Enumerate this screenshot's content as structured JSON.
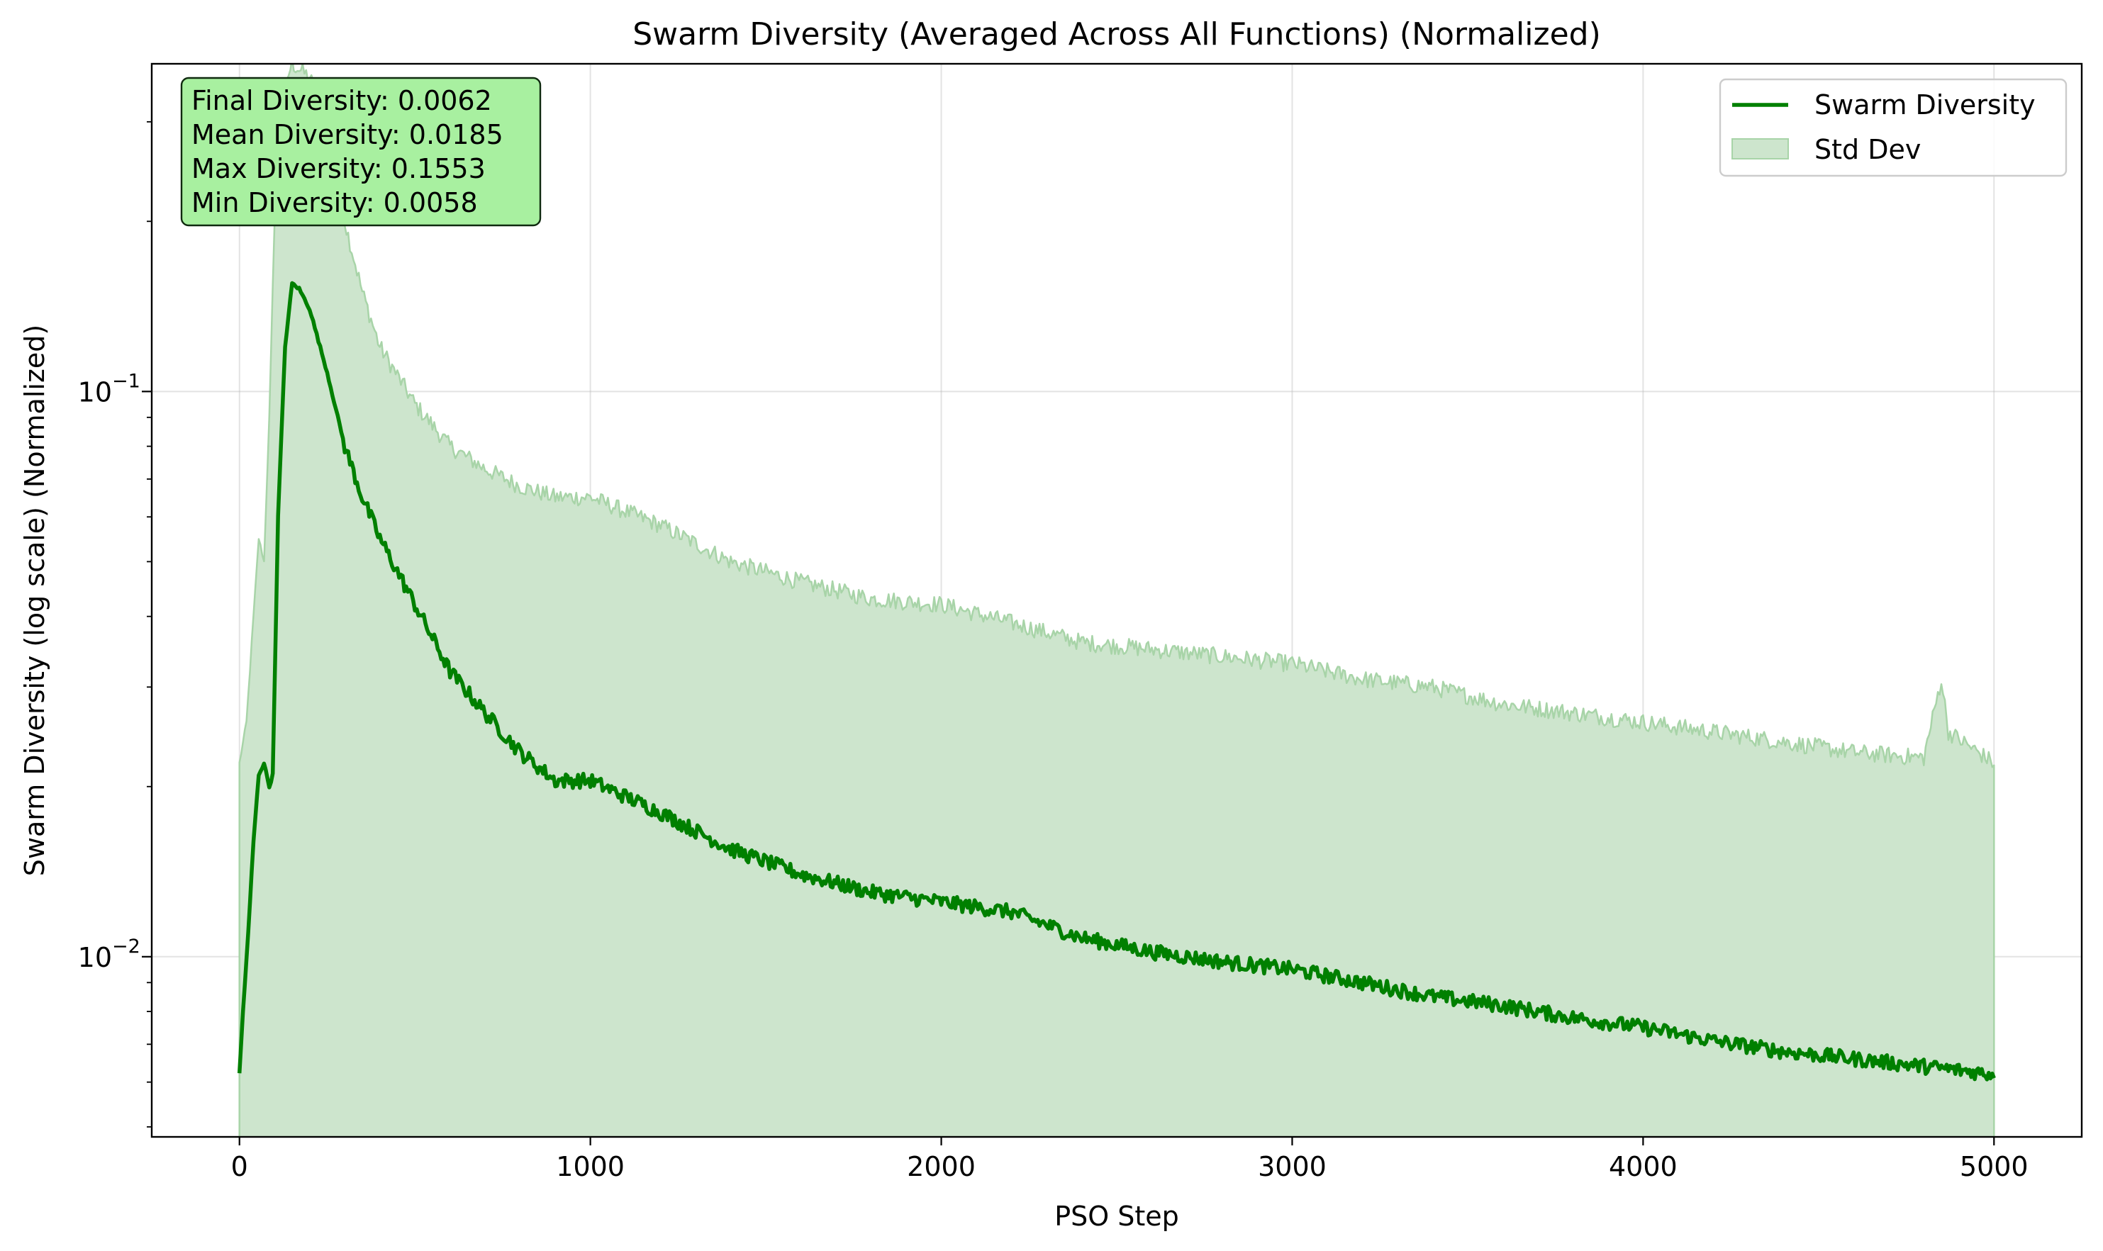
{
  "chart_data": {
    "type": "line",
    "title": "Swarm Diversity (Averaged Across All Functions) (Normalized)",
    "xlabel": "PSO Step",
    "ylabel": "Swarm Diversity (log scale) (Normalized)",
    "xlim": [
      -250,
      5250
    ],
    "ylim": [
      0.0048,
      0.38
    ],
    "yscale": "log",
    "grid": true,
    "x_ticks": [
      0,
      1000,
      2000,
      3000,
      4000,
      5000
    ],
    "x_tick_labels": [
      "0",
      "1000",
      "2000",
      "3000",
      "4000",
      "5000"
    ],
    "y_major_ticks": [
      {
        "value": 0.01,
        "base": "10",
        "exp": "−2"
      },
      {
        "value": 0.1,
        "base": "10",
        "exp": "−1"
      }
    ],
    "legend": {
      "position": "top-right",
      "entries": [
        {
          "label": "Swarm Diversity",
          "kind": "line"
        },
        {
          "label": "Std Dev",
          "kind": "patch"
        }
      ]
    },
    "stats_box": {
      "position": "top-left",
      "lines": [
        "Final Diversity: 0.0062",
        "Mean Diversity: 0.0185",
        "Max Diversity: 0.1553",
        "Min Diversity: 0.0058"
      ]
    },
    "colors": {
      "line": "#008000",
      "band_fill": "#cde5cd",
      "band_edge": "#a8d4a8",
      "stats_box_bg": "#a8f0a0"
    },
    "series": [
      {
        "name": "Swarm Diversity",
        "x": [
          0,
          10,
          25,
          40,
          55,
          70,
          85,
          95,
          110,
          130,
          150,
          170,
          200,
          250,
          300,
          350,
          400,
          500,
          600,
          700,
          800,
          900,
          1000,
          1200,
          1400,
          1600,
          1800,
          2000,
          2200,
          2400,
          2600,
          2800,
          3000,
          3200,
          3400,
          3600,
          3800,
          4000,
          4200,
          4400,
          4600,
          4800,
          5000
        ],
        "values": [
          0.0062,
          0.008,
          0.011,
          0.016,
          0.021,
          0.022,
          0.02,
          0.021,
          0.06,
          0.12,
          0.1553,
          0.152,
          0.14,
          0.108,
          0.08,
          0.065,
          0.055,
          0.042,
          0.032,
          0.027,
          0.023,
          0.0205,
          0.0205,
          0.018,
          0.0155,
          0.014,
          0.013,
          0.0125,
          0.012,
          0.0108,
          0.0102,
          0.0098,
          0.0095,
          0.009,
          0.0085,
          0.0082,
          0.0078,
          0.0075,
          0.0071,
          0.0068,
          0.0066,
          0.0064,
          0.0062
        ]
      },
      {
        "name": "Std Dev upper",
        "x": [
          0,
          20,
          40,
          55,
          70,
          85,
          100,
          120,
          150,
          200,
          250,
          300,
          350,
          400,
          500,
          600,
          700,
          800,
          900,
          1000,
          1200,
          1400,
          1600,
          1800,
          2000,
          2200,
          2400,
          2600,
          2800,
          3000,
          3200,
          3400,
          3600,
          3800,
          4000,
          4200,
          4400,
          4600,
          4800,
          4850,
          4870,
          5000
        ],
        "values": [
          0.022,
          0.026,
          0.04,
          0.055,
          0.05,
          0.09,
          0.2,
          0.33,
          0.38,
          0.36,
          0.3,
          0.2,
          0.15,
          0.12,
          0.095,
          0.08,
          0.073,
          0.068,
          0.065,
          0.065,
          0.058,
          0.05,
          0.046,
          0.043,
          0.042,
          0.039,
          0.036,
          0.035,
          0.034,
          0.033,
          0.031,
          0.03,
          0.028,
          0.027,
          0.026,
          0.025,
          0.024,
          0.023,
          0.0225,
          0.031,
          0.025,
          0.022
        ]
      }
    ]
  }
}
